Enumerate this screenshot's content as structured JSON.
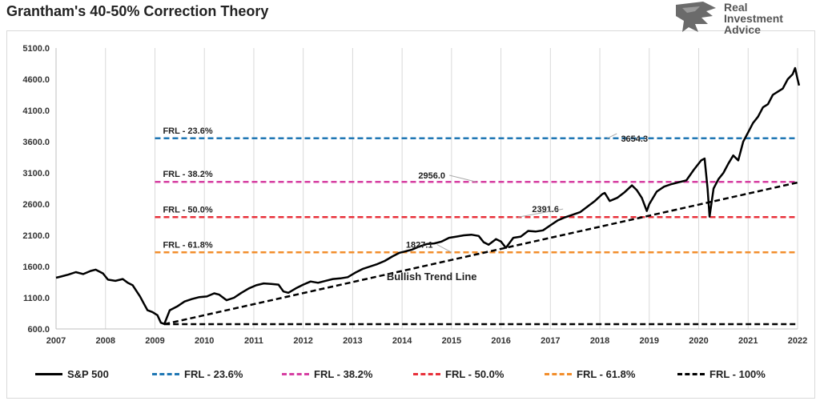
{
  "title": "Grantham's 40-50% Correction Theory",
  "logo": {
    "line1": "Real",
    "line2": "Investment",
    "line3": "Advice"
  },
  "chart_data": {
    "type": "line",
    "title": "Grantham's 40-50% Correction Theory",
    "xlabel": "",
    "ylabel": "",
    "xlim": [
      2007,
      2022
    ],
    "ylim": [
      600,
      5100
    ],
    "x_ticks": [
      "2007",
      "2008",
      "2009",
      "2010",
      "2011",
      "2012",
      "2013",
      "2014",
      "2015",
      "2016",
      "2017",
      "2018",
      "2019",
      "2020",
      "2021",
      "2022"
    ],
    "y_ticks": [
      "600.0",
      "1100.0",
      "1600.0",
      "2100.0",
      "2600.0",
      "3100.0",
      "3600.0",
      "4100.0",
      "4600.0",
      "5100.0"
    ],
    "grid": "vertical",
    "legend_position": "bottom",
    "series": [
      {
        "name": "S&P 500",
        "color": "#000000",
        "style": "solid",
        "x": [
          2007.0,
          2007.1,
          2007.25,
          2007.4,
          2007.55,
          2007.7,
          2007.8,
          2007.95,
          2008.05,
          2008.2,
          2008.35,
          2008.45,
          2008.55,
          2008.7,
          2008.78,
          2008.85,
          2008.95,
          2009.05,
          2009.12,
          2009.19,
          2009.3,
          2009.45,
          2009.6,
          2009.75,
          2009.9,
          2010.05,
          2010.2,
          2010.3,
          2010.45,
          2010.6,
          2010.75,
          2010.9,
          2011.05,
          2011.2,
          2011.35,
          2011.5,
          2011.6,
          2011.7,
          2011.85,
          2012.0,
          2012.15,
          2012.3,
          2012.45,
          2012.6,
          2012.75,
          2012.9,
          2013.05,
          2013.2,
          2013.35,
          2013.5,
          2013.65,
          2013.8,
          2013.95,
          2014.05,
          2014.2,
          2014.35,
          2014.5,
          2014.65,
          2014.8,
          2014.95,
          2015.1,
          2015.25,
          2015.4,
          2015.55,
          2015.65,
          2015.75,
          2015.9,
          2016.0,
          2016.1,
          2016.25,
          2016.4,
          2016.55,
          2016.7,
          2016.85,
          2017.0,
          2017.15,
          2017.3,
          2017.45,
          2017.6,
          2017.75,
          2017.9,
          2018.05,
          2018.1,
          2018.2,
          2018.35,
          2018.5,
          2018.65,
          2018.75,
          2018.85,
          2018.95,
          2019.0,
          2019.15,
          2019.3,
          2019.45,
          2019.6,
          2019.75,
          2019.9,
          2020.05,
          2020.12,
          2020.18,
          2020.22,
          2020.3,
          2020.4,
          2020.5,
          2020.6,
          2020.7,
          2020.8,
          2020.9,
          2021.0,
          2021.1,
          2021.2,
          2021.3,
          2021.4,
          2021.5,
          2021.6,
          2021.7,
          2021.8,
          2021.9,
          2021.95,
          2022.0,
          2022.03
        ],
        "y": [
          1420,
          1440,
          1470,
          1510,
          1480,
          1530,
          1550,
          1490,
          1390,
          1370,
          1400,
          1340,
          1300,
          1120,
          1000,
          900,
          870,
          820,
          700,
          680,
          900,
          960,
          1040,
          1080,
          1110,
          1120,
          1170,
          1150,
          1060,
          1100,
          1180,
          1250,
          1300,
          1330,
          1320,
          1310,
          1200,
          1180,
          1250,
          1310,
          1360,
          1340,
          1370,
          1400,
          1410,
          1430,
          1500,
          1560,
          1600,
          1640,
          1690,
          1760,
          1820,
          1840,
          1870,
          1920,
          1960,
          1970,
          2000,
          2060,
          2080,
          2100,
          2110,
          2090,
          1990,
          1950,
          2040,
          2000,
          1900,
          2060,
          2080,
          2170,
          2160,
          2180,
          2260,
          2340,
          2390,
          2430,
          2470,
          2560,
          2650,
          2760,
          2780,
          2650,
          2700,
          2790,
          2900,
          2820,
          2700,
          2490,
          2600,
          2800,
          2880,
          2920,
          2950,
          2980,
          3150,
          3300,
          3330,
          2850,
          2400,
          2850,
          3000,
          3100,
          3250,
          3380,
          3300,
          3600,
          3750,
          3900,
          4000,
          4150,
          4200,
          4350,
          4400,
          4450,
          4600,
          4680,
          4780,
          4600,
          4500
        ]
      },
      {
        "name": "FRL - 23.6%",
        "color": "#1f77b4",
        "style": "dashed",
        "level": 3654.3,
        "x_start": 2009.0,
        "label": "FRL - 23.6%",
        "value_label": "3654.3"
      },
      {
        "name": "FRL - 38.2%",
        "color": "#d63fa2",
        "style": "dashed",
        "level": 2956.0,
        "x_start": 2009.0,
        "label": "FRL - 38.2%",
        "value_label": "2956.0"
      },
      {
        "name": "FRL - 50.0%",
        "color": "#e8303a",
        "style": "dashed",
        "level": 2391.6,
        "x_start": 2009.0,
        "label": "FRL - 50.0%",
        "value_label": "2391.6"
      },
      {
        "name": "FRL - 61.8%",
        "color": "#f28e2b",
        "style": "dashed",
        "level": 1827.1,
        "x_start": 2009.0,
        "label": "FRL - 61.8%",
        "value_label": "1827.1"
      },
      {
        "name": "FRL - 100%",
        "color": "#000000",
        "style": "dashed",
        "level": 676.5,
        "x_start": 2009.19
      }
    ],
    "trend_line": {
      "label": "Bullish Trend Line",
      "x": [
        2009.19,
        2022.2
      ],
      "y": [
        676.5,
        2960
      ]
    },
    "annotations": [
      {
        "text": "3654.3",
        "x": 2018.7,
        "y": 3600
      },
      {
        "text": "2956.0",
        "x": 2014.6,
        "y": 3010
      },
      {
        "text": "2391.6",
        "x": 2016.9,
        "y": 2470
      },
      {
        "text": "1827.1",
        "x": 2014.35,
        "y": 1900
      },
      {
        "text": "Bullish Trend Line",
        "x": 2014.6,
        "y": 1380
      }
    ]
  },
  "legend": [
    {
      "label": "S&P 500",
      "color": "#000000",
      "style": "solid"
    },
    {
      "label": "FRL - 23.6%",
      "color": "#1f77b4",
      "style": "dashed"
    },
    {
      "label": "FRL - 38.2%",
      "color": "#d63fa2",
      "style": "dashed"
    },
    {
      "label": "FRL - 50.0%",
      "color": "#e8303a",
      "style": "dashed"
    },
    {
      "label": "FRL - 61.8%",
      "color": "#f28e2b",
      "style": "dashed"
    },
    {
      "label": "FRL - 100%",
      "color": "#000000",
      "style": "dashed"
    }
  ]
}
